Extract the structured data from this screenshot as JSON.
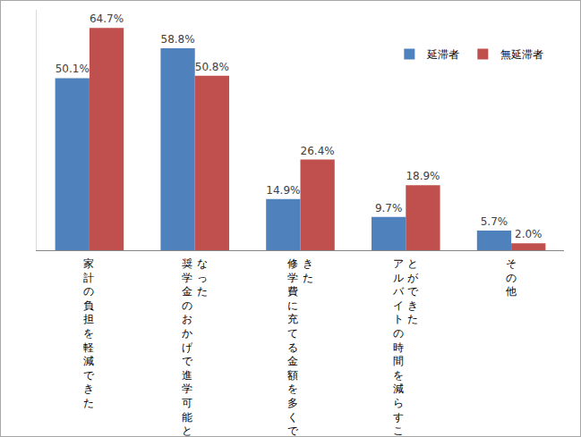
{
  "chart_data": {
    "type": "bar",
    "categories": [
      "家計の負担を軽減できた",
      "奨学金のおかげで進学可能となった",
      "修学費に充てる金額を多くできた",
      "アルバイトの時間を減らすことができた",
      "その他"
    ],
    "series": [
      {
        "name": "延滞者",
        "color": "#4f81bd",
        "values": [
          50.1,
          58.8,
          14.9,
          9.7,
          5.7
        ],
        "value_labels": [
          "50.1%",
          "58.8%",
          "14.9%",
          "9.7%",
          "5.7%"
        ]
      },
      {
        "name": "無延滞者",
        "color": "#c0504d",
        "values": [
          64.7,
          50.8,
          26.4,
          18.9,
          2.0
        ],
        "value_labels": [
          "64.7%",
          "50.8%",
          "26.4%",
          "18.9%",
          "2.0%"
        ]
      }
    ],
    "ylim": [
      0,
      70
    ],
    "yticks": [],
    "grid": false,
    "legend": "top right",
    "data_labels": true,
    "tick_labels": "x"
  }
}
